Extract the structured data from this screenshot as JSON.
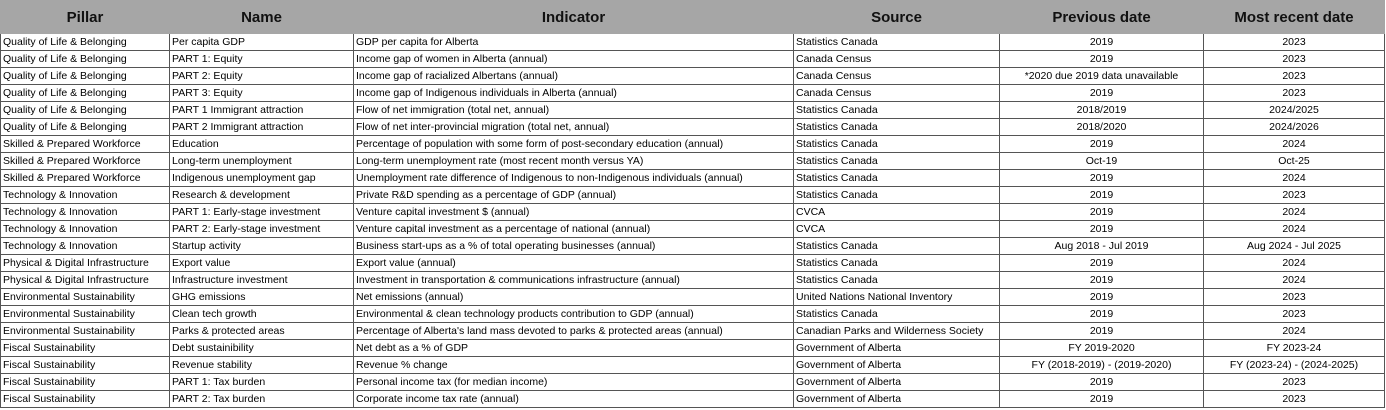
{
  "table": {
    "headers": [
      "Pillar",
      "Name",
      "Indicator",
      "Source",
      "Previous date",
      "Most recent date"
    ],
    "rows": [
      [
        "Quality of Life & Belonging",
        "Per capita GDP",
        "GDP per capita for Alberta",
        "Statistics Canada",
        "2019",
        "2023"
      ],
      [
        "Quality of Life & Belonging",
        "PART 1: Equity",
        "Income gap of women in Alberta (annual)",
        "Canada Census",
        "2019",
        "2023"
      ],
      [
        "Quality of Life & Belonging",
        "PART 2: Equity",
        "Income gap of racialized Albertans (annual)",
        "Canada Census",
        "*2020 due 2019 data unavailable",
        "2023"
      ],
      [
        "Quality of Life & Belonging",
        "PART 3: Equity",
        "Income gap of Indigenous individuals in Alberta (annual)",
        "Canada Census",
        "2019",
        "2023"
      ],
      [
        "Quality of Life & Belonging",
        "PART 1 Immigrant attraction",
        "Flow of net immigration (total net, annual)",
        "Statistics Canada",
        "2018/2019",
        "2024/2025"
      ],
      [
        "Quality of Life & Belonging",
        "PART 2 Immigrant attraction",
        "Flow of net inter-provincial migration (total net, annual)",
        "Statistics Canada",
        "2018/2020",
        "2024/2026"
      ],
      [
        "Skilled & Prepared Workforce",
        "Education",
        "Percentage of population with some form of post-secondary education (annual)",
        "Statistics Canada",
        "2019",
        "2024"
      ],
      [
        "Skilled & Prepared Workforce",
        "Long-term unemployment",
        "Long-term unemployment rate (most recent month versus YA)",
        "Statistics Canada",
        "Oct-19",
        "Oct-25"
      ],
      [
        "Skilled & Prepared Workforce",
        "Indigenous unemployment gap",
        "Unemployment rate difference of Indigenous to non-Indigenous individuals (annual)",
        "Statistics Canada",
        "2019",
        "2024"
      ],
      [
        "Technology & Innovation",
        "Research & development",
        "Private R&D spending as a percentage of GDP (annual)",
        "Statistics Canada",
        "2019",
        "2023"
      ],
      [
        "Technology & Innovation",
        "PART 1: Early-stage investment",
        "Venture capital investment $ (annual)",
        "CVCA",
        "2019",
        "2024"
      ],
      [
        "Technology & Innovation",
        "PART 2: Early-stage investment",
        "Venture capital investment as a percentage of national (annual)",
        "CVCA",
        "2019",
        "2024"
      ],
      [
        "Technology & Innovation",
        "Startup activity",
        "Business start-ups as a % of total operating businesses (annual)",
        "Statistics Canada",
        "Aug 2018 - Jul 2019",
        "Aug 2024 - Jul 2025"
      ],
      [
        "Physical & Digital Infrastructure",
        "Export value",
        "Export value (annual)",
        "Statistics Canada",
        "2019",
        "2024"
      ],
      [
        "Physical & Digital Infrastructure",
        "Infrastructure investment",
        "Investment in transportation & communications infrastructure (annual)",
        "Statistics Canada",
        "2019",
        "2024"
      ],
      [
        "Environmental Sustainability",
        "GHG emissions",
        "Net emissions (annual)",
        "United Nations National Inventory",
        "2019",
        "2023"
      ],
      [
        "Environmental Sustainability",
        "Clean tech growth",
        "Environmental & clean technology products contribution to GDP (annual)",
        "Statistics Canada",
        "2019",
        "2023"
      ],
      [
        "Environmental Sustainability",
        "Parks & protected areas",
        "Percentage of Alberta's land mass devoted to parks & protected areas (annual)",
        "Canadian Parks and Wilderness Society",
        "2019",
        "2024"
      ],
      [
        "Fiscal Sustainability",
        "Debt sustainibility",
        "Net debt as a % of GDP",
        "Government of Alberta",
        "FY 2019-2020",
        "FY 2023-24"
      ],
      [
        "Fiscal Sustainability",
        "Revenue stability",
        "Revenue % change",
        "Government of Alberta",
        "FY (2018-2019) - (2019-2020)",
        "FY (2023-24) - (2024-2025)"
      ],
      [
        "Fiscal Sustainability",
        "PART 1: Tax burden",
        "Personal income tax (for median income)",
        "Government of Alberta",
        "2019",
        "2023"
      ],
      [
        "Fiscal Sustainability",
        "PART 2: Tax burden",
        "Corporate income tax rate (annual)",
        "Government of Alberta",
        "2019",
        "2023"
      ]
    ]
  }
}
